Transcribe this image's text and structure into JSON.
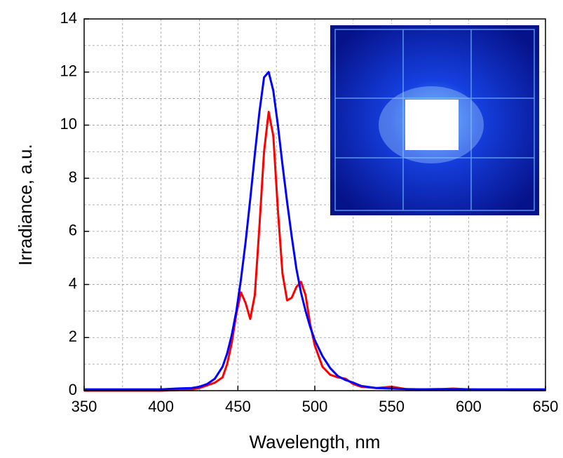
{
  "chart_data": {
    "type": "line",
    "xlabel": "Wavelength, nm",
    "ylabel": "Irradiance, a.u.",
    "x": [
      350,
      360,
      370,
      380,
      390,
      400,
      410,
      420,
      425,
      430,
      435,
      440,
      443,
      446,
      449,
      452,
      455,
      458,
      461,
      464,
      467,
      470,
      473,
      476,
      479,
      482,
      485,
      488,
      491,
      494,
      497,
      500,
      505,
      510,
      515,
      520,
      525,
      530,
      540,
      550,
      560,
      570,
      580,
      590,
      600,
      610,
      620,
      630,
      640,
      650
    ],
    "series": [
      {
        "color": "#ff0000",
        "values": [
          0,
          0,
          0,
          0,
          0,
          0,
          0.02,
          0.05,
          0.1,
          0.2,
          0.3,
          0.5,
          1.0,
          1.8,
          2.9,
          3.7,
          3.3,
          2.7,
          3.6,
          6.2,
          9.0,
          10.5,
          9.6,
          6.8,
          4.4,
          3.4,
          3.5,
          3.9,
          4.1,
          3.6,
          2.5,
          1.7,
          0.9,
          0.6,
          0.5,
          0.45,
          0.25,
          0.15,
          0.1,
          0.15,
          0.05,
          0.05,
          0.05,
          0.08,
          0.05,
          0.03,
          0.03,
          0.02,
          0.02,
          0.02
        ]
      },
      {
        "color": "#0000ff",
        "values": [
          0.05,
          0.05,
          0.05,
          0.05,
          0.05,
          0.05,
          0.08,
          0.1,
          0.15,
          0.25,
          0.45,
          0.9,
          1.4,
          2.1,
          3.0,
          4.2,
          5.6,
          7.2,
          8.9,
          10.5,
          11.8,
          12.0,
          11.3,
          10.0,
          8.5,
          7.1,
          5.8,
          4.6,
          3.7,
          3.0,
          2.4,
          1.9,
          1.3,
          0.85,
          0.55,
          0.4,
          0.3,
          0.18,
          0.1,
          0.08,
          0.06,
          0.05,
          0.06,
          0.05,
          0.05,
          0.05,
          0.05,
          0.05,
          0.05,
          0.05
        ]
      }
    ],
    "xlim": [
      350,
      650
    ],
    "xticks": [
      350,
      400,
      450,
      500,
      550,
      600,
      650
    ],
    "ylim": [
      0,
      14
    ],
    "yticks": [
      0,
      2,
      4,
      6,
      8,
      10,
      12,
      14
    ],
    "xminorticks": [
      375,
      425,
      475,
      525,
      575,
      625
    ],
    "yminorticks": [
      1,
      3,
      5,
      7,
      9,
      11,
      13
    ],
    "grid": true
  }
}
